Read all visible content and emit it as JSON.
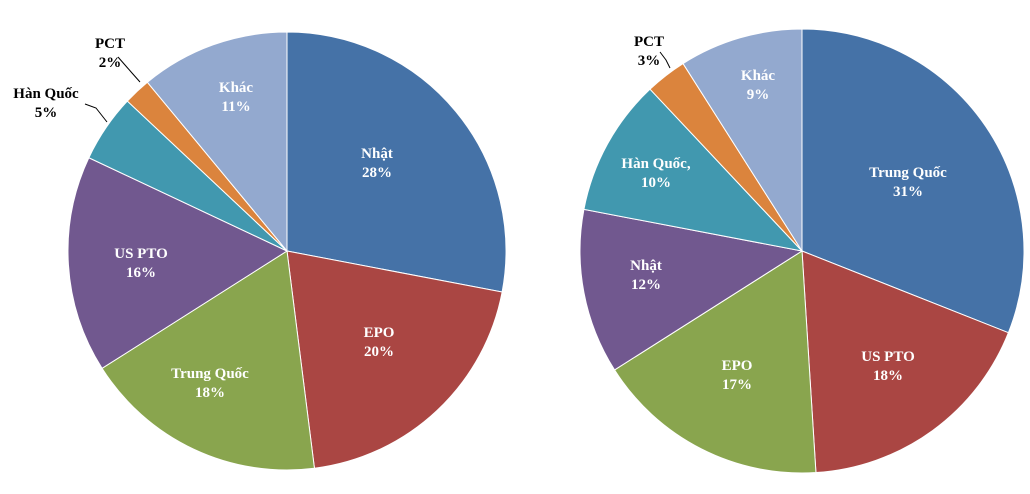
{
  "chart_data": [
    {
      "type": "pie",
      "slices": [
        {
          "label": "Nhật",
          "value": 28,
          "value_label": "28%",
          "color": "#4572A7"
        },
        {
          "label": "EPO",
          "value": 20,
          "value_label": "20%",
          "color": "#AA4643"
        },
        {
          "label": "Trung Quốc",
          "value": 18,
          "value_label": "18%",
          "color": "#89A54E"
        },
        {
          "label": "US PTO",
          "value": 16,
          "value_label": "16%",
          "color": "#71588F"
        },
        {
          "label": "Hàn Quốc",
          "value": 5,
          "value_label": "5%",
          "color": "#4198AF"
        },
        {
          "label": "PCT",
          "value": 2,
          "value_label": "2%",
          "color": "#DB843D"
        },
        {
          "label": "Khác",
          "value": 11,
          "value_label": "11%",
          "color": "#93A9CF"
        }
      ],
      "start_angle_deg": 0,
      "direction": "clockwise"
    },
    {
      "type": "pie",
      "slices": [
        {
          "label": "Trung Quốc",
          "value": 31,
          "value_label": "31%",
          "color": "#4572A7"
        },
        {
          "label": "US PTO",
          "value": 18,
          "value_label": "18%",
          "color": "#AA4643"
        },
        {
          "label": "EPO",
          "value": 17,
          "value_label": "17%",
          "color": "#89A54E"
        },
        {
          "label": "Nhật",
          "value": 12,
          "value_label": "12%",
          "color": "#71588F"
        },
        {
          "label": "Hàn Quốc,",
          "value": 10,
          "value_label": "10%",
          "color": "#4198AF"
        },
        {
          "label": "PCT",
          "value": 3,
          "value_label": "3%",
          "color": "#DB843D"
        },
        {
          "label": "Khác",
          "value": 9,
          "value_label": "9%",
          "color": "#93A9CF"
        }
      ],
      "start_angle_deg": 0,
      "direction": "clockwise"
    }
  ]
}
